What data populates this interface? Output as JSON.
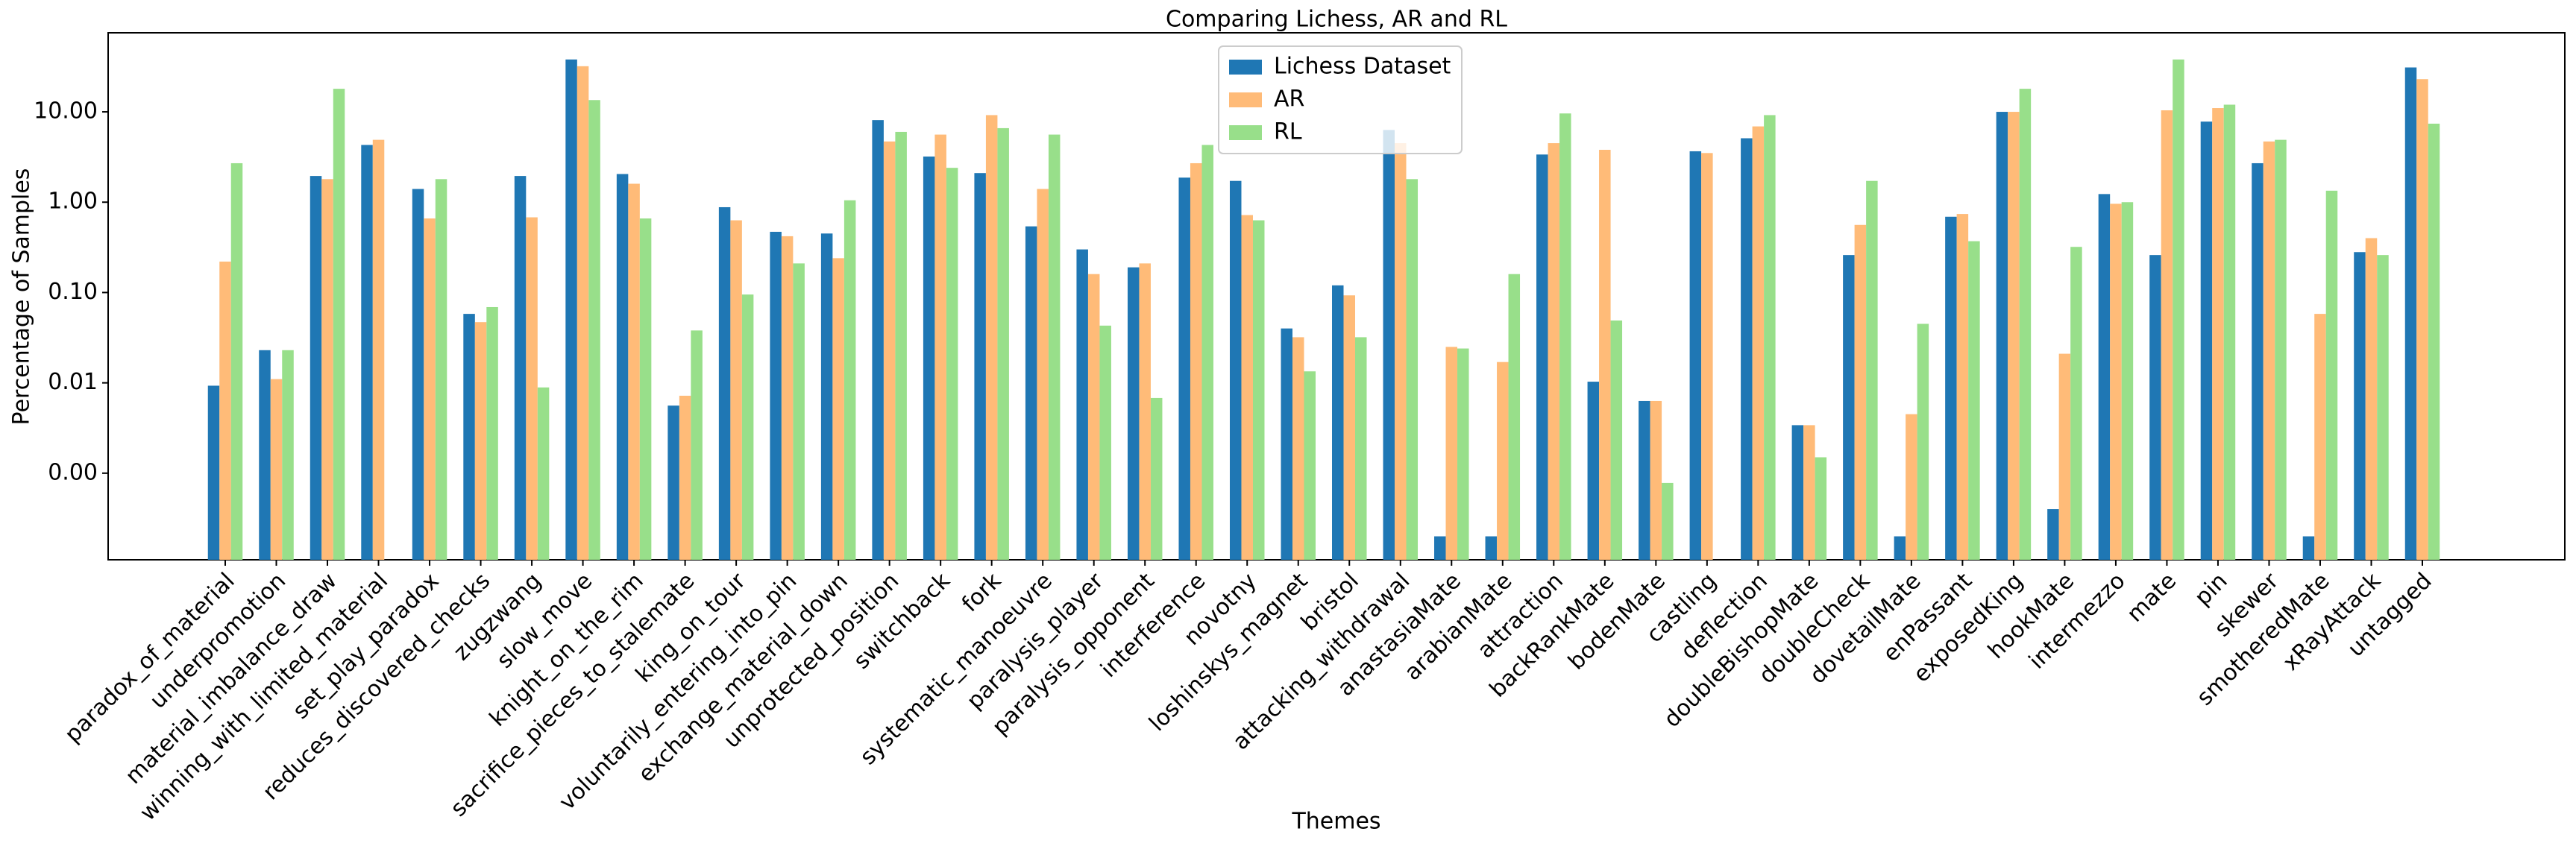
{
  "chart_data": {
    "type": "bar",
    "title": "Comparing Lichess, AR and RL",
    "x_label": "Themes",
    "y_label": "Percentage of Samples",
    "log_scale": true,
    "grid": false,
    "legend_position": "upper center",
    "categories": [
      "paradox_of_material",
      "underpromotion",
      "material_imbalance_draw",
      "winning_with_limited_material",
      "set_play_paradox",
      "reduces_discovered_checks",
      "zugzwang",
      "slow_move",
      "knight_on_the_rim",
      "sacrifice_pieces_to_stalemate",
      "king_on_tour",
      "voluntarily_entering_into_pin",
      "exchange_material_down",
      "unprotected_position",
      "switchback",
      "fork",
      "systematic_manoeuvre",
      "paralysis_player",
      "paralysis_opponent",
      "interference",
      "novotny",
      "loshinskys_magnet",
      "bristol",
      "attacking_withdrawal",
      "anastasiaMate",
      "arabianMate",
      "attraction",
      "backRankMate",
      "bodenMate",
      "castling",
      "deflection",
      "doubleBishopMate",
      "doubleCheck",
      "dovetailMate",
      "enPassant",
      "exposedKing",
      "hookMate",
      "intermezzo",
      "mate",
      "pin",
      "skewer",
      "smotheredMate",
      "xRayAttack",
      "untagged"
    ],
    "series": [
      {
        "name": "Lichess Dataset",
        "color": "#1f77b4",
        "values": [
          0.0093,
          0.023,
          1.95,
          4.3,
          1.4,
          0.058,
          1.95,
          38,
          2.05,
          0.0056,
          0.88,
          0.47,
          0.45,
          8.1,
          3.2,
          2.1,
          0.54,
          0.3,
          0.19,
          1.87,
          1.72,
          0.04,
          0.12,
          6.3,
          0.0002,
          0.0002,
          3.37,
          0.0103,
          0.0063,
          3.66,
          5.1,
          0.0034,
          0.26,
          0.0002,
          0.69,
          10,
          0.0004,
          1.23,
          0.26,
          7.8,
          2.7,
          0.0002,
          0.28,
          31
        ]
      },
      {
        "name": "AR",
        "color": "#ffbb78",
        "values": [
          0.22,
          0.011,
          1.8,
          4.9,
          0.66,
          0.047,
          0.68,
          32,
          1.6,
          0.0072,
          0.63,
          0.42,
          0.24,
          4.7,
          5.6,
          9.2,
          1.4,
          0.16,
          0.21,
          2.7,
          0.72,
          0.032,
          0.093,
          4.5,
          0.025,
          0.017,
          4.5,
          3.8,
          0.0063,
          3.5,
          6.9,
          0.0034,
          0.56,
          0.0045,
          0.74,
          10,
          0.021,
          0.96,
          10.4,
          11,
          4.7,
          0.058,
          0.4,
          23
        ]
      },
      {
        "name": "RL",
        "color": "#98df8a",
        "values": [
          2.7,
          0.023,
          18,
          null,
          1.8,
          0.069,
          0.0089,
          13.5,
          0.66,
          0.038,
          0.095,
          0.21,
          1.05,
          6,
          2.4,
          6.6,
          5.6,
          0.043,
          0.0068,
          4.3,
          0.63,
          0.0134,
          0.032,
          1.8,
          0.024,
          0.16,
          9.6,
          0.049,
          0.00078,
          null,
          9.2,
          0.0015,
          1.72,
          0.045,
          0.37,
          18,
          0.32,
          1,
          38,
          12,
          4.9,
          1.34,
          0.26,
          7.4
        ]
      }
    ],
    "ylim": [
      0.00011,
      75
    ],
    "yticks": [
      {
        "value": 0.001,
        "label": "0.00"
      },
      {
        "value": 0.01,
        "label": "0.01"
      },
      {
        "value": 0.1,
        "label": "0.10"
      },
      {
        "value": 1,
        "label": "1.00"
      },
      {
        "value": 10,
        "label": "10.00"
      }
    ]
  }
}
